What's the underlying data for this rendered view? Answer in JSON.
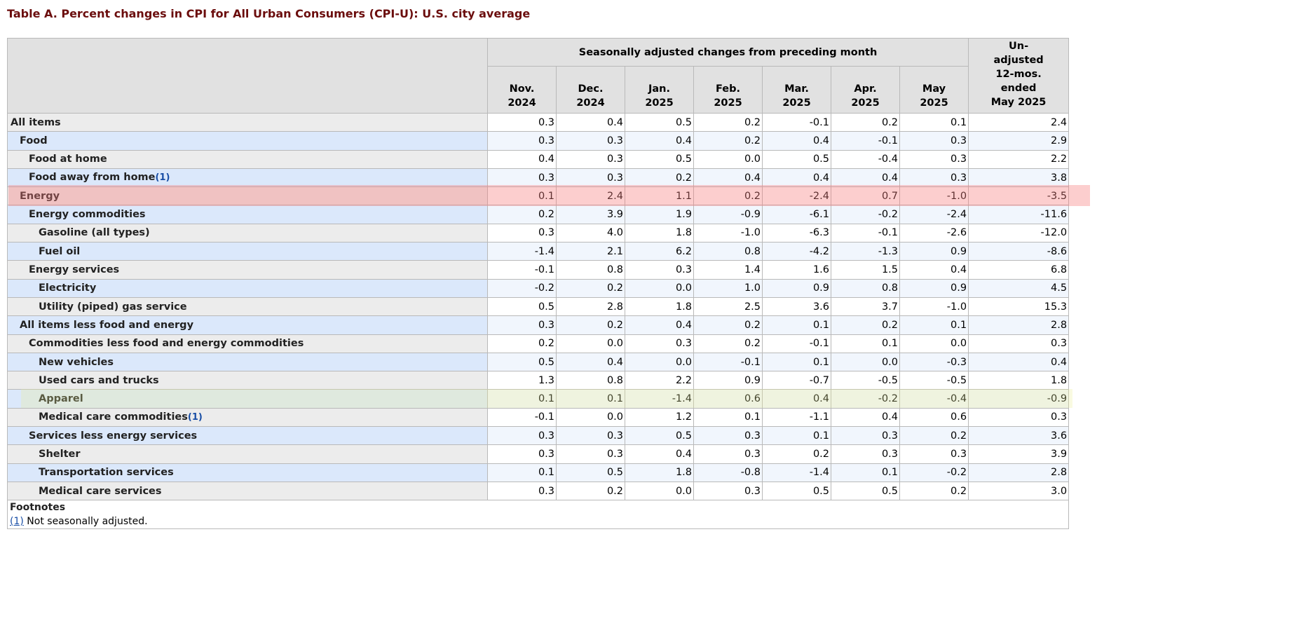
{
  "title": "Table A. Percent changes in CPI for All Urban Consumers (CPI-U): U.S. city average",
  "header": {
    "group_label": "Seasonally adjusted changes from preceding month",
    "months": [
      {
        "mon": "Nov.",
        "year": "2024"
      },
      {
        "mon": "Dec.",
        "year": "2024"
      },
      {
        "mon": "Jan.",
        "year": "2025"
      },
      {
        "mon": "Feb.",
        "year": "2025"
      },
      {
        "mon": "Mar.",
        "year": "2025"
      },
      {
        "mon": "Apr.",
        "year": "2025"
      },
      {
        "mon": "May",
        "year": "2025"
      }
    ],
    "unadjusted": [
      "Un-",
      "adjusted",
      "12-mos.",
      "ended",
      "May 2025"
    ]
  },
  "rows": [
    {
      "label": "All items",
      "level": 1,
      "values": [
        "0.3",
        "0.4",
        "0.5",
        "0.2",
        "-0.1",
        "0.2",
        "0.1",
        "2.4"
      ]
    },
    {
      "label": "Food",
      "level": 2,
      "values": [
        "0.3",
        "0.3",
        "0.4",
        "0.2",
        "0.4",
        "-0.1",
        "0.3",
        "2.9"
      ]
    },
    {
      "label": "Food at home",
      "level": 3,
      "values": [
        "0.4",
        "0.3",
        "0.5",
        "0.0",
        "0.5",
        "-0.4",
        "0.3",
        "2.2"
      ]
    },
    {
      "label": "Food away from home",
      "level": 3,
      "footnote": "1",
      "values": [
        "0.3",
        "0.3",
        "0.2",
        "0.4",
        "0.4",
        "0.4",
        "0.3",
        "3.8"
      ]
    },
    {
      "label": "Energy",
      "level": 2,
      "values": [
        "0.1",
        "2.4",
        "1.1",
        "0.2",
        "-2.4",
        "0.7",
        "-1.0",
        "-3.5"
      ]
    },
    {
      "label": "Energy commodities",
      "level": 3,
      "values": [
        "0.2",
        "3.9",
        "1.9",
        "-0.9",
        "-6.1",
        "-0.2",
        "-2.4",
        "-11.6"
      ]
    },
    {
      "label": "Gasoline (all types)",
      "level": 4,
      "values": [
        "0.3",
        "4.0",
        "1.8",
        "-1.0",
        "-6.3",
        "-0.1",
        "-2.6",
        "-12.0"
      ]
    },
    {
      "label": "Fuel oil",
      "level": 4,
      "values": [
        "-1.4",
        "2.1",
        "6.2",
        "0.8",
        "-4.2",
        "-1.3",
        "0.9",
        "-8.6"
      ]
    },
    {
      "label": "Energy services",
      "level": 3,
      "values": [
        "-0.1",
        "0.8",
        "0.3",
        "1.4",
        "1.6",
        "1.5",
        "0.4",
        "6.8"
      ]
    },
    {
      "label": "Electricity",
      "level": 4,
      "values": [
        "-0.2",
        "0.2",
        "0.0",
        "1.0",
        "0.9",
        "0.8",
        "0.9",
        "4.5"
      ]
    },
    {
      "label": "Utility (piped) gas service",
      "level": 4,
      "values": [
        "0.5",
        "2.8",
        "1.8",
        "2.5",
        "3.6",
        "3.7",
        "-1.0",
        "15.3"
      ]
    },
    {
      "label": "All items less food and energy",
      "level": 2,
      "values": [
        "0.3",
        "0.2",
        "0.4",
        "0.2",
        "0.1",
        "0.2",
        "0.1",
        "2.8"
      ]
    },
    {
      "label": "Commodities less food and energy commodities",
      "level": 3,
      "values": [
        "0.2",
        "0.0",
        "0.3",
        "0.2",
        "-0.1",
        "0.1",
        "0.0",
        "0.3"
      ]
    },
    {
      "label": "New vehicles",
      "level": 4,
      "values": [
        "0.5",
        "0.4",
        "0.0",
        "-0.1",
        "0.1",
        "0.0",
        "-0.3",
        "0.4"
      ]
    },
    {
      "label": "Used cars and trucks",
      "level": 4,
      "values": [
        "1.3",
        "0.8",
        "2.2",
        "0.9",
        "-0.7",
        "-0.5",
        "-0.5",
        "1.8"
      ]
    },
    {
      "label": "Apparel",
      "level": 4,
      "values": [
        "0.1",
        "0.1",
        "-1.4",
        "0.6",
        "0.4",
        "-0.2",
        "-0.4",
        "-0.9"
      ]
    },
    {
      "label": "Medical care commodities",
      "level": 4,
      "footnote": "1",
      "values": [
        "-0.1",
        "0.0",
        "1.2",
        "0.1",
        "-1.1",
        "0.4",
        "0.6",
        "0.3"
      ]
    },
    {
      "label": "Services less energy services",
      "level": 3,
      "values": [
        "0.3",
        "0.3",
        "0.5",
        "0.3",
        "0.1",
        "0.3",
        "0.2",
        "3.6"
      ]
    },
    {
      "label": "Shelter",
      "level": 4,
      "values": [
        "0.3",
        "0.3",
        "0.4",
        "0.3",
        "0.2",
        "0.3",
        "0.3",
        "3.9"
      ]
    },
    {
      "label": "Transportation services",
      "level": 4,
      "values": [
        "0.1",
        "0.5",
        "1.8",
        "-0.8",
        "-1.4",
        "0.1",
        "-0.2",
        "2.8"
      ]
    },
    {
      "label": "Medical care services",
      "level": 4,
      "values": [
        "0.3",
        "0.2",
        "0.0",
        "0.3",
        "0.5",
        "0.5",
        "0.2",
        "3.0"
      ]
    }
  ],
  "footnotes": {
    "heading": "Footnotes",
    "items": [
      {
        "ref": "(1)",
        "text": "Not seasonally adjusted."
      }
    ]
  },
  "highlights": {
    "energy_row_color": "#f67c7c",
    "apparel_row_color": "#e8ec96"
  }
}
